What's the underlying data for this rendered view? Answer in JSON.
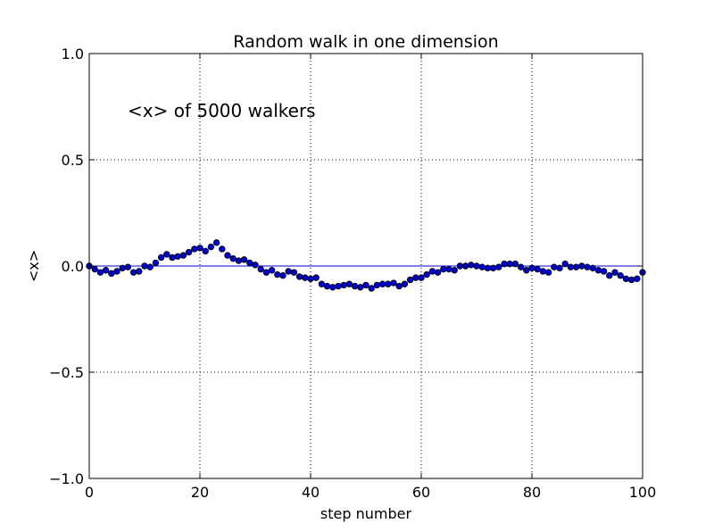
{
  "chart_data": {
    "type": "scatter",
    "title": "Random walk in one dimension",
    "xlabel": "step number",
    "ylabel": "<x>",
    "annotation": "<x> of 5000 walkers",
    "xlim": [
      0,
      100
    ],
    "ylim": [
      -1.0,
      1.0
    ],
    "x_ticks": [
      0,
      20,
      40,
      60,
      80,
      100
    ],
    "x_tick_labels": [
      "0",
      "20",
      "40",
      "60",
      "80",
      "100"
    ],
    "y_ticks": [
      -1.0,
      -0.5,
      0.0,
      0.5,
      1.0
    ],
    "y_tick_labels": [
      "−1.0",
      "−0.5",
      "0.0",
      "0.5",
      "1.0"
    ],
    "grid": true,
    "reference_line_y": 0.0,
    "marker_color": "#0000cc",
    "line_color": "#0000cc",
    "series": [
      {
        "x": [
          0,
          1,
          2,
          3,
          4,
          5,
          6,
          7,
          8,
          9,
          10,
          11,
          12,
          13,
          14,
          15,
          16,
          17,
          18,
          19,
          20,
          21,
          22,
          23,
          24,
          25,
          26,
          27,
          28,
          29,
          30,
          31,
          32,
          33,
          34,
          35,
          36,
          37,
          38,
          39,
          40,
          41,
          42,
          43,
          44,
          45,
          46,
          47,
          48,
          49,
          50,
          51,
          52,
          53,
          54,
          55,
          56,
          57,
          58,
          59,
          60,
          61,
          62,
          63,
          64,
          65,
          66,
          67,
          68,
          69,
          70,
          71,
          72,
          73,
          74,
          75,
          76,
          77,
          78,
          79,
          80,
          81,
          82,
          83,
          84,
          85,
          86,
          87,
          88,
          89,
          90,
          91,
          92,
          93,
          94,
          95,
          96,
          97,
          98,
          99,
          100
        ],
        "y": [
          0.0,
          -0.015,
          -0.03,
          -0.02,
          -0.035,
          -0.025,
          -0.01,
          -0.005,
          -0.03,
          -0.025,
          0.0,
          -0.005,
          0.015,
          0.04,
          0.055,
          0.04,
          0.045,
          0.05,
          0.065,
          0.08,
          0.085,
          0.07,
          0.09,
          0.11,
          0.08,
          0.05,
          0.035,
          0.025,
          0.03,
          0.015,
          0.005,
          -0.015,
          -0.03,
          -0.02,
          -0.04,
          -0.045,
          -0.025,
          -0.03,
          -0.05,
          -0.055,
          -0.06,
          -0.055,
          -0.085,
          -0.095,
          -0.1,
          -0.095,
          -0.09,
          -0.085,
          -0.095,
          -0.1,
          -0.09,
          -0.105,
          -0.09,
          -0.085,
          -0.085,
          -0.08,
          -0.095,
          -0.085,
          -0.065,
          -0.055,
          -0.055,
          -0.04,
          -0.025,
          -0.03,
          -0.015,
          -0.015,
          -0.02,
          0.0,
          0.0,
          0.005,
          0.0,
          -0.005,
          -0.01,
          -0.01,
          -0.005,
          0.01,
          0.01,
          0.01,
          -0.005,
          -0.02,
          -0.01,
          -0.015,
          -0.025,
          -0.03,
          -0.005,
          -0.01,
          0.01,
          -0.005,
          -0.005,
          0.0,
          -0.005,
          -0.01,
          -0.02,
          -0.025,
          -0.045,
          -0.03,
          -0.045,
          -0.06,
          -0.065,
          -0.06,
          -0.03
        ]
      }
    ]
  }
}
